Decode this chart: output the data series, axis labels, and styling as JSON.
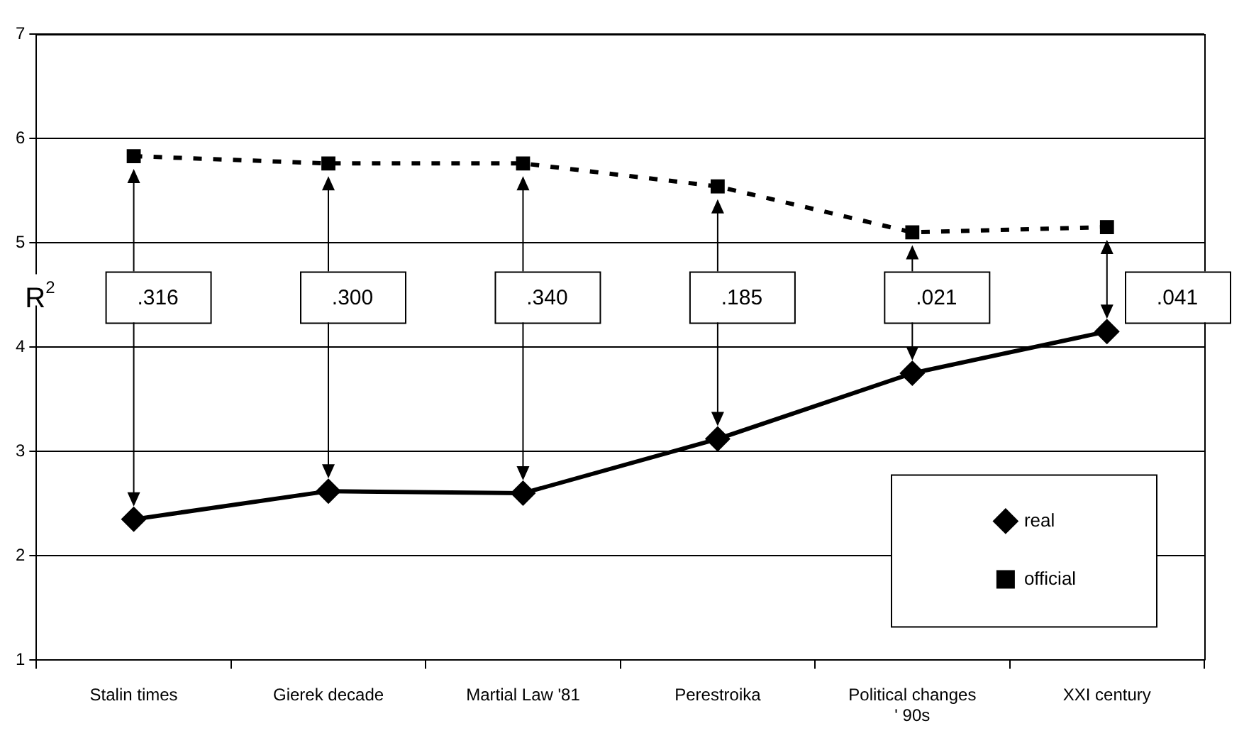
{
  "chart_data": {
    "type": "line",
    "ylabel": "R$^{2}$",
    "categories": [
      "Stalin times",
      "Gierek decade",
      "Martial Law '81",
      "Perestroika",
      "Political changes\n' 90s",
      "XXI century"
    ],
    "series": [
      {
        "name": "real",
        "color": "#000000",
        "marker": "diamond",
        "line_style": "solid",
        "values": [
          2.35,
          2.62,
          2.6,
          3.12,
          3.75,
          4.15
        ]
      },
      {
        "name": "official",
        "color": "#000000",
        "marker": "square",
        "line_style": "dashed",
        "values": [
          5.83,
          5.76,
          5.76,
          5.54,
          5.1,
          5.15
        ]
      }
    ],
    "ylim": [
      1,
      7
    ],
    "yticks": [
      1,
      2,
      3,
      4,
      5,
      6,
      7
    ],
    "grid": "y",
    "legend": "bottom right",
    "annotations": [
      ".316",
      ".300",
      ".340",
      ".185",
      ".021",
      ".041"
    ]
  }
}
